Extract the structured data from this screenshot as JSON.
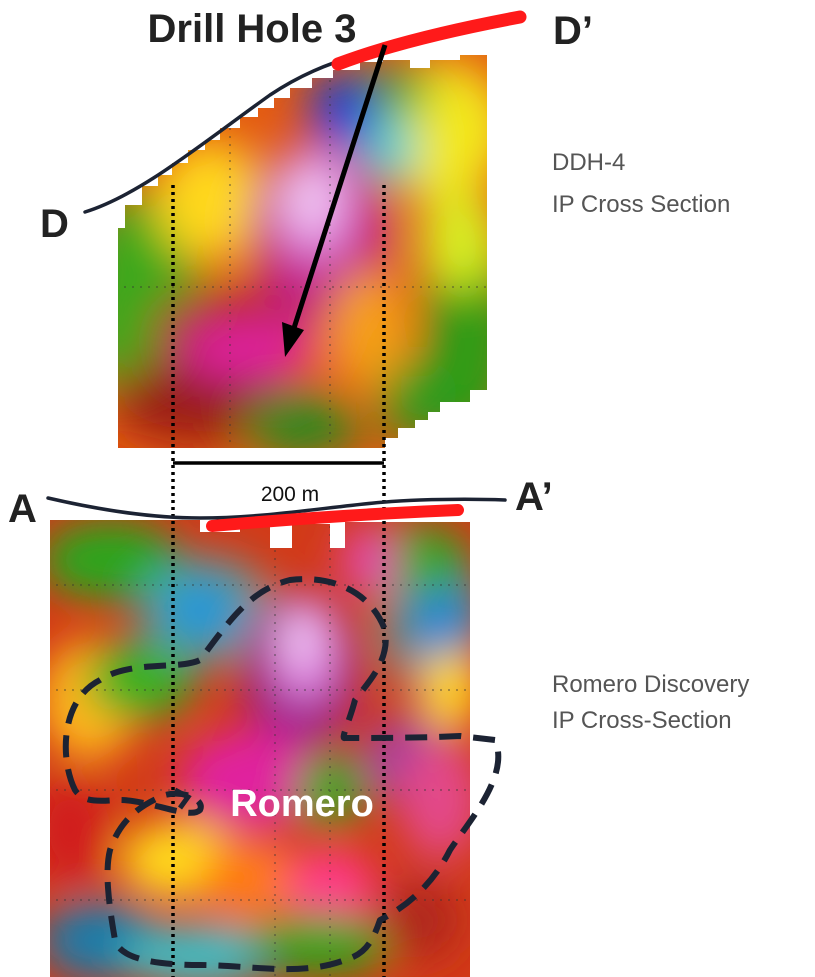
{
  "labels": {
    "drill_hole": "Drill Hole 3",
    "d": "D",
    "d_prime": "D’",
    "a": "A",
    "a_prime": "A’",
    "scale_bar": "200 m",
    "romero": "Romero"
  },
  "sections": {
    "upper": {
      "line1": "DDH-4",
      "line2": "IP Cross Section"
    },
    "lower": {
      "line1": "Romero Discovery",
      "line2": "IP Cross-Section"
    }
  },
  "colors": {
    "drill_trace": "#ff1a1a",
    "outline": "#1c2333",
    "guide_lines": "#000000",
    "ip_high": "#ff2fd2",
    "ip_mid": "#ff8a00",
    "ip_low": "#1a3fd6"
  }
}
